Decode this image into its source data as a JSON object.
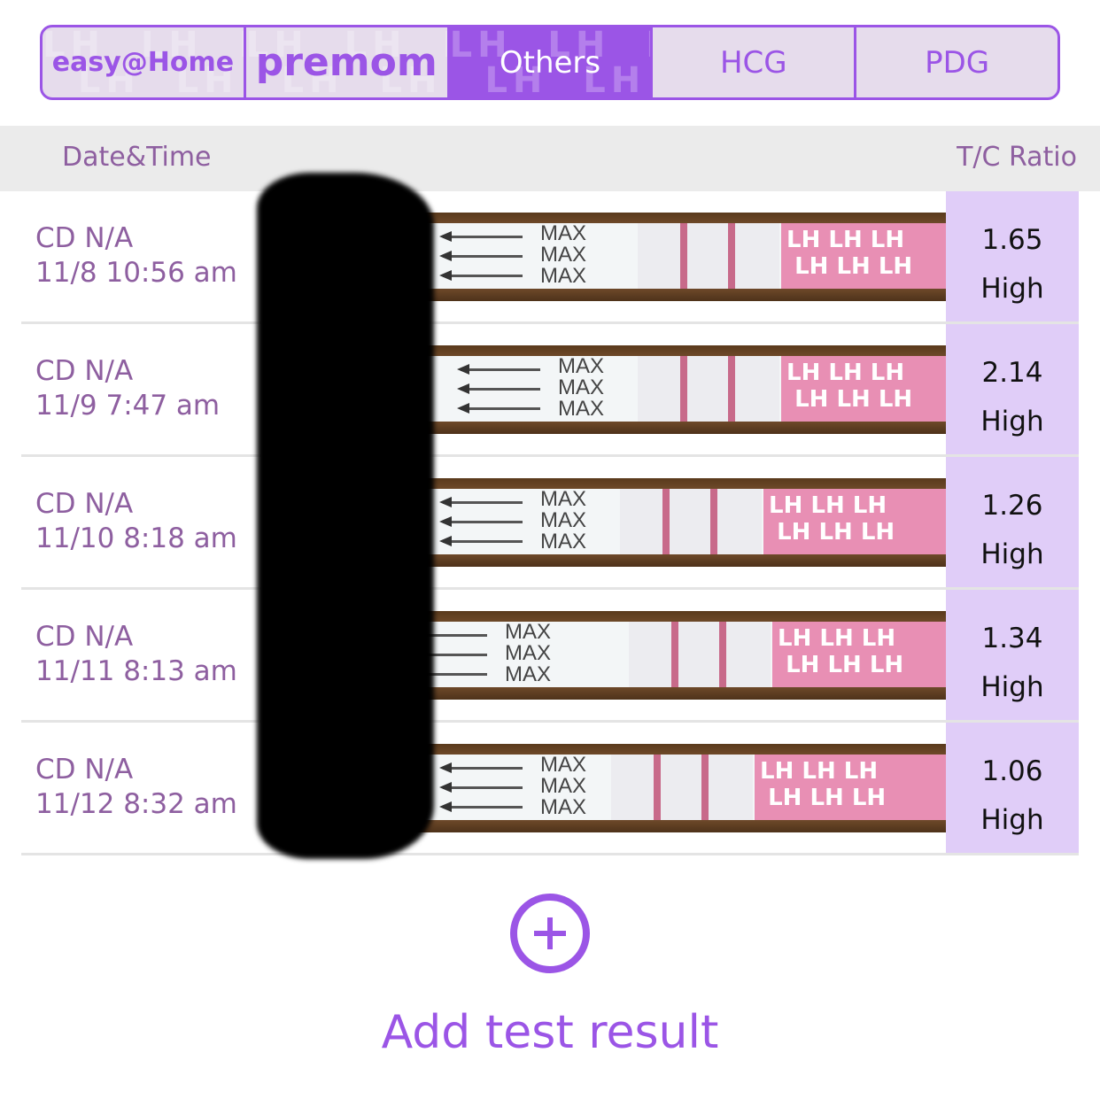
{
  "tabs": [
    {
      "label": "easy@Home",
      "type": "logo",
      "active": false
    },
    {
      "label": "premom",
      "type": "logo",
      "active": false
    },
    {
      "label": "Others",
      "active": true
    },
    {
      "label": "HCG",
      "active": false
    },
    {
      "label": "PDG",
      "active": false
    }
  ],
  "tab_watermark": "LH",
  "header": {
    "date_col": "Date&Time",
    "ratio_col": "T/C Ratio"
  },
  "strip_text": {
    "max": "MAX",
    "lh": "LH"
  },
  "rows": [
    {
      "cycle": "CD N/A",
      "datetime": "11/8 10:56 am",
      "ratio": "1.65",
      "level": "High"
    },
    {
      "cycle": "CD N/A",
      "datetime": "11/9 7:47 am",
      "ratio": "2.14",
      "level": "High"
    },
    {
      "cycle": "CD N/A",
      "datetime": "11/10 8:18 am",
      "ratio": "1.26",
      "level": "High"
    },
    {
      "cycle": "CD N/A",
      "datetime": "11/11 8:13 am",
      "ratio": "1.34",
      "level": "High"
    },
    {
      "cycle": "CD N/A",
      "datetime": "11/12 8:32 am",
      "ratio": "1.06",
      "level": "High"
    }
  ],
  "add_button": {
    "label": "Add test result",
    "icon": "plus-circle-icon"
  },
  "colors": {
    "accent": "#9b55e6",
    "text": "#8e5fa0",
    "ratio_bg": "#e0cdf8",
    "header_bg": "#ebebeb"
  }
}
